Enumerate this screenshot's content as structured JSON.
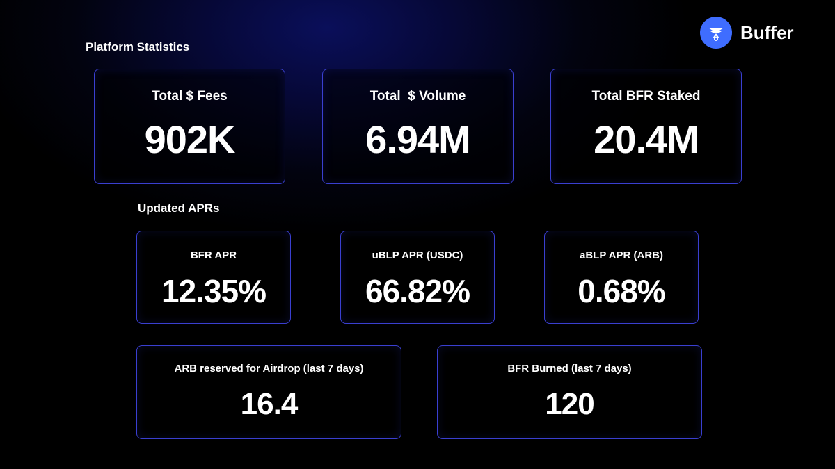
{
  "brand": {
    "name": "Buffer",
    "icon": "buffer-logo-icon",
    "accent": "#3f6dff"
  },
  "platform_statistics": {
    "title": "Platform Statistics",
    "cards": [
      {
        "label": "Total $ Fees",
        "value": "902K"
      },
      {
        "label": "Total  $ Volume",
        "value": "6.94M"
      },
      {
        "label": "Total BFR Staked",
        "value": "20.4M"
      }
    ]
  },
  "updated_aprs": {
    "title": "Updated APRs",
    "cards": [
      {
        "label": "BFR APR",
        "value": "12.35%"
      },
      {
        "label": "uBLP APR (USDC)",
        "value": "66.82%"
      },
      {
        "label": "aBLP APR (ARB)",
        "value": "0.68%"
      }
    ]
  },
  "weekly": {
    "cards": [
      {
        "label": "ARB reserved for Airdrop (last 7 days)",
        "value": "16.4"
      },
      {
        "label": "BFR Burned (last 7 days)",
        "value": "120"
      }
    ]
  },
  "colors": {
    "card_border": "#3a3fd0",
    "background": "#02030f",
    "text": "#ffffff"
  }
}
